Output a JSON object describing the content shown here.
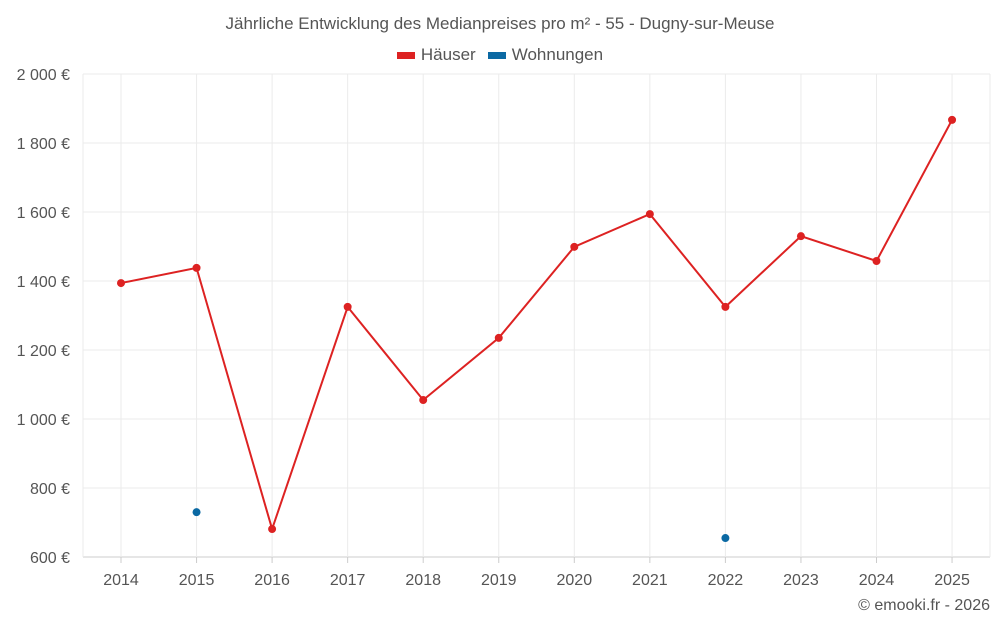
{
  "chart_data": {
    "type": "line",
    "title": "Jährliche Entwicklung des Medianpreises pro m² - 55 - Dugny-sur-Meuse",
    "xlabel": "",
    "ylabel": "",
    "categories": [
      "2014",
      "2015",
      "2016",
      "2017",
      "2018",
      "2019",
      "2020",
      "2021",
      "2022",
      "2023",
      "2024",
      "2025"
    ],
    "ylim": [
      600,
      2000
    ],
    "yticks": [
      600,
      800,
      1000,
      1200,
      1400,
      1600,
      1800,
      2000
    ],
    "ytick_labels": [
      "600 €",
      "800 €",
      "1 000 €",
      "1 200 €",
      "1 400 €",
      "1 600 €",
      "1 800 €",
      "2 000 €"
    ],
    "grid": true,
    "legend_position": "top-center",
    "series": [
      {
        "name": "Häuser",
        "color": "#dd2222",
        "values": [
          1394,
          1438,
          681,
          1325,
          1055,
          1235,
          1499,
          1594,
          1325,
          1530,
          1458,
          1867
        ]
      },
      {
        "name": "Wohnungen",
        "color": "#0b69a3",
        "values": [
          null,
          730,
          null,
          null,
          null,
          null,
          null,
          null,
          655,
          null,
          null,
          null
        ]
      }
    ]
  },
  "credit": "© emooki.fr - 2026"
}
